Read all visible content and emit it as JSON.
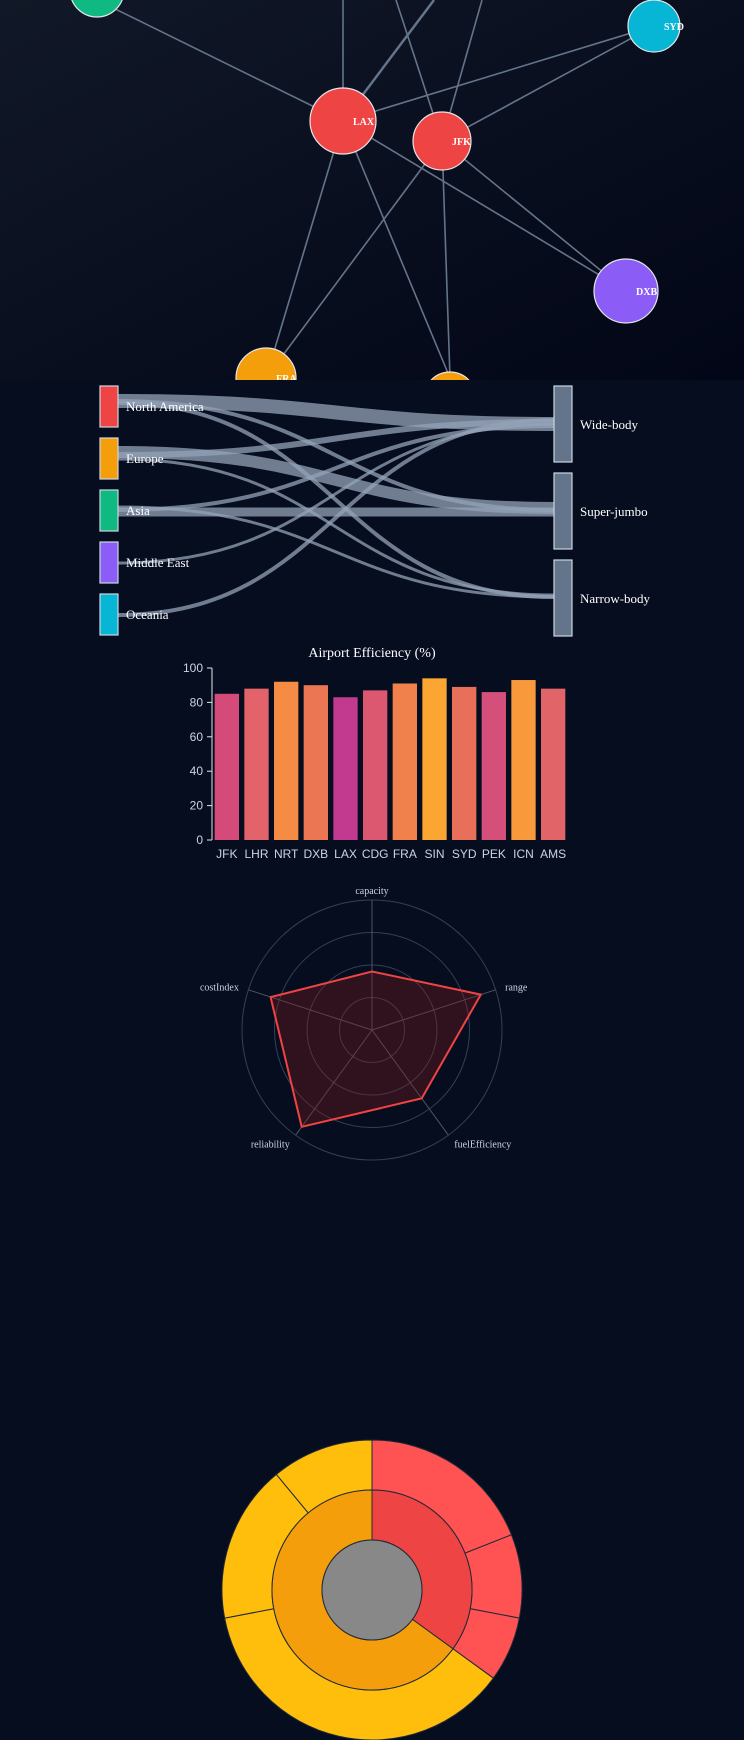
{
  "network": {
    "nodes": [
      {
        "id": "LAX",
        "color": "#ef4444"
      },
      {
        "id": "JFK",
        "color": "#ef4444"
      },
      {
        "id": "SYD",
        "color": "#06b6d4"
      },
      {
        "id": "DXB",
        "color": "#8b5cf6"
      },
      {
        "id": "FRA",
        "color": "#f59e0b"
      },
      {
        "id": "",
        "color": "#10b981"
      },
      {
        "id": "",
        "color": "#f59e0b"
      }
    ]
  },
  "sankey": {
    "sources": [
      {
        "label": "North America",
        "color": "#ef4444"
      },
      {
        "label": "Europe",
        "color": "#f59e0b"
      },
      {
        "label": "Asia",
        "color": "#10b981"
      },
      {
        "label": "Middle East",
        "color": "#8b5cf6"
      },
      {
        "label": "Oceania",
        "color": "#06b6d4"
      }
    ],
    "targets": [
      {
        "label": "Wide-body"
      },
      {
        "label": "Super-jumbo"
      },
      {
        "label": "Narrow-body"
      }
    ],
    "link_color": "#94a3b8",
    "node_color": "#64748b"
  },
  "chart_data": [
    {
      "type": "bar",
      "title": "Airport Efficiency (%)",
      "categories": [
        "JFK",
        "LHR",
        "NRT",
        "DXB",
        "LAX",
        "CDG",
        "FRA",
        "SIN",
        "SYD",
        "PEK",
        "ICN",
        "AMS"
      ],
      "values": [
        85,
        88,
        92,
        90,
        83,
        87,
        91,
        94,
        89,
        86,
        93,
        88
      ],
      "colors": [
        "#d44a79",
        "#e2636a",
        "#f68b44",
        "#ea7653",
        "#c13a8f",
        "#dc5770",
        "#f0804c",
        "#fba633",
        "#e8705a",
        "#d44f79",
        "#f89a3c",
        "#e06468"
      ],
      "ylim": [
        0,
        100
      ],
      "yticks": [
        0,
        20,
        40,
        60,
        80,
        100
      ]
    },
    {
      "type": "radar",
      "axes": [
        "capacity",
        "range",
        "fuelEfficiency",
        "reliability",
        "costIndex"
      ],
      "values": [
        0.45,
        0.88,
        0.65,
        0.92,
        0.82
      ],
      "rmax": 1,
      "stroke": "#ef4444",
      "fill": "#7f1d1d"
    },
    {
      "type": "sunburst",
      "inner": [
        {
          "value": 35,
          "color": "#ef4444"
        },
        {
          "value": 65,
          "color": "#f59e0b"
        }
      ],
      "outer": [
        {
          "value": 19,
          "color": "#ff5252"
        },
        {
          "value": 9,
          "color": "#ff5252"
        },
        {
          "value": 7,
          "color": "#ff5252"
        },
        {
          "value": 37,
          "color": "#ffbe0b"
        },
        {
          "value": 17,
          "color": "#ffbe0b"
        },
        {
          "value": 11,
          "color": "#ffbe0b"
        }
      ],
      "center_color": "#888888"
    }
  ]
}
